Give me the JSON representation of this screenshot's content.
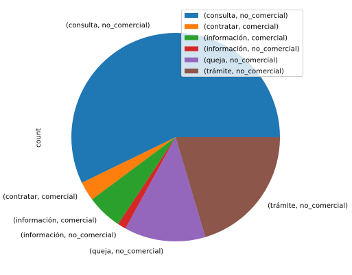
{
  "chart_data": {
    "type": "pie",
    "ylabel": "count",
    "slices": [
      {
        "label": "(consulta, no_comercial)",
        "value": 57.2,
        "color": "#1f77b4"
      },
      {
        "label": "(contratar, comercial)",
        "value": 3.0,
        "color": "#ff7f0e"
      },
      {
        "label": "(información, comercial)",
        "value": 5.5,
        "color": "#2ca02c"
      },
      {
        "label": "(información, no_comercial)",
        "value": 1.3,
        "color": "#d62728"
      },
      {
        "label": "(queja, no_comercial)",
        "value": 12.6,
        "color": "#9467bd"
      },
      {
        "label": "(trámite, no_comercial)",
        "value": 20.4,
        "color": "#8c564b"
      }
    ],
    "start_angle_deg": 0,
    "direction": "counterclockwise",
    "legend_position": "upper-right",
    "grid": false
  }
}
